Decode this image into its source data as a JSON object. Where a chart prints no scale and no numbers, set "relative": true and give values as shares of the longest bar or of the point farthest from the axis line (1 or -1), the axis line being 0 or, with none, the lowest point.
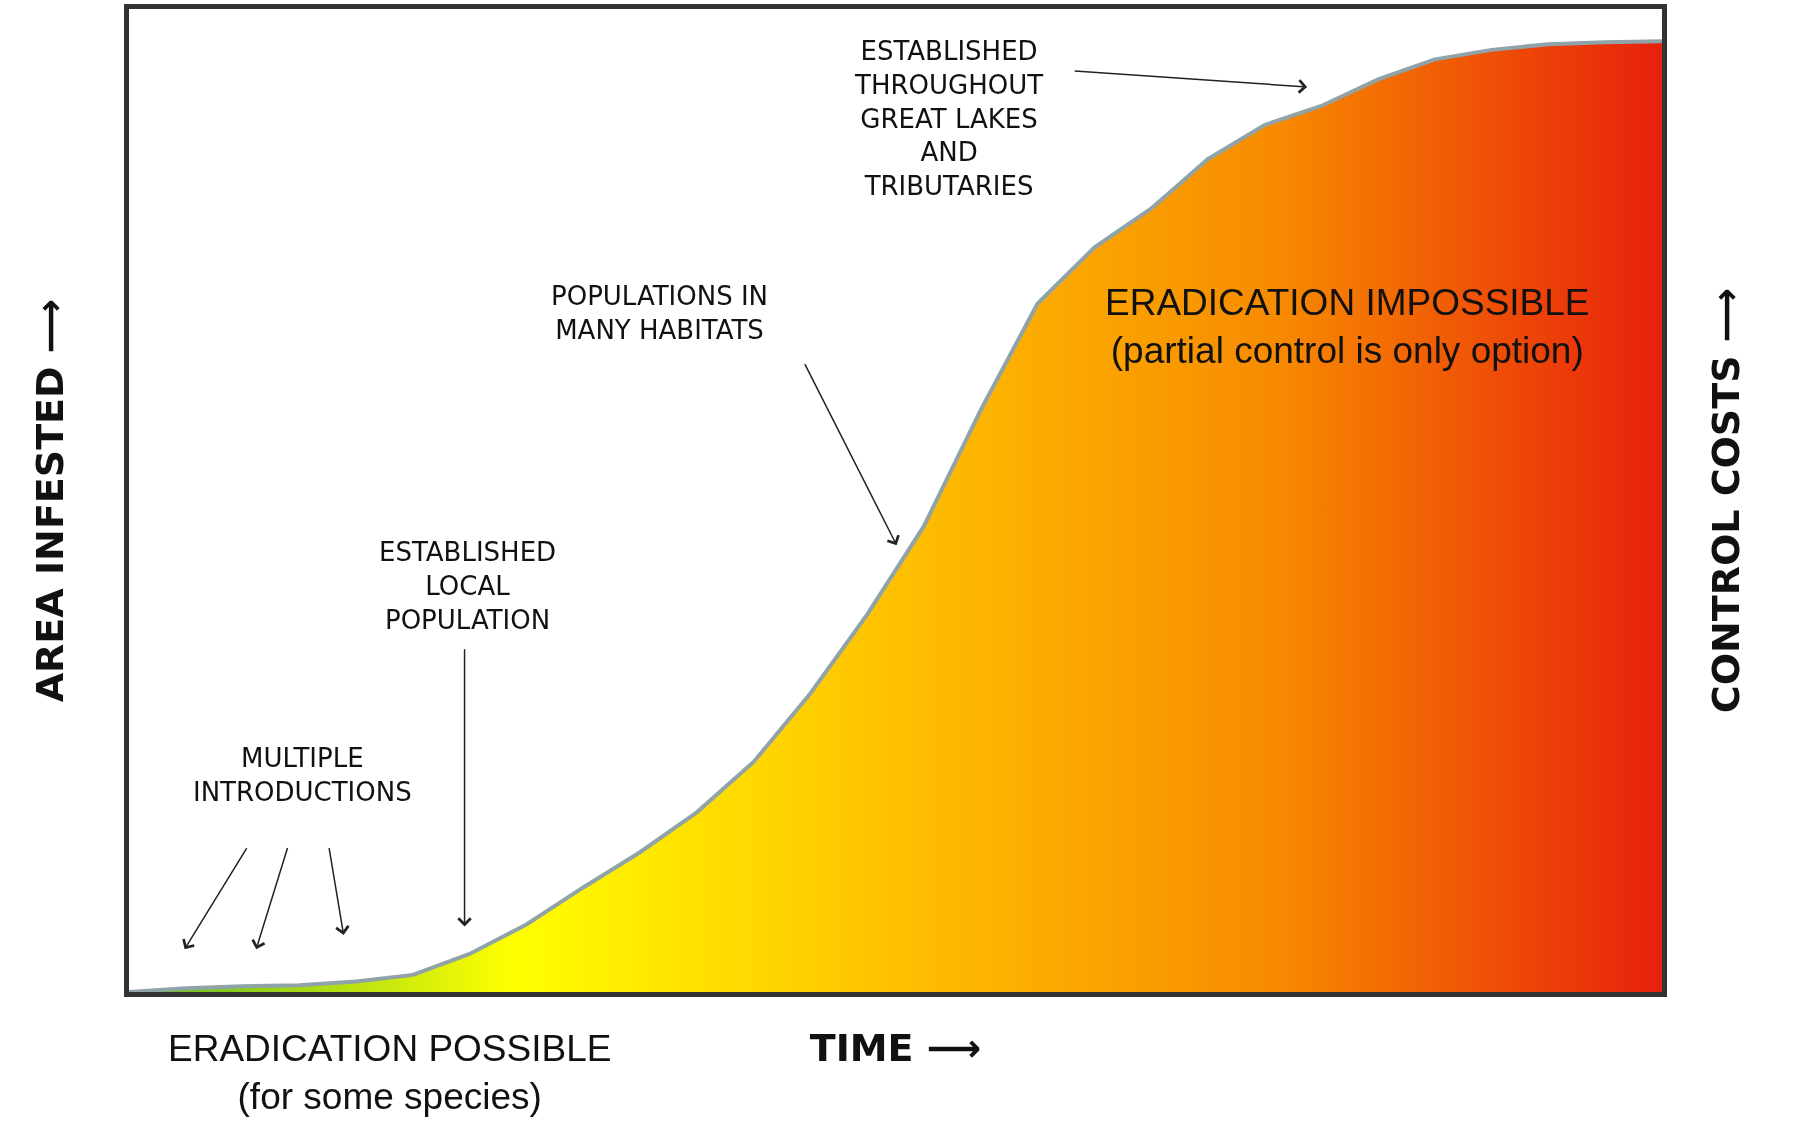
{
  "chart_data": {
    "type": "area",
    "relative": true,
    "tick_labels": false,
    "grid": false,
    "xlabel": "TIME ⟶",
    "ylabel": "AREA INFESTED ⟶",
    "y2label": "CONTROL COSTS ⟶",
    "categories": [
      null,
      null,
      null,
      null,
      null,
      null,
      null,
      null,
      null,
      null,
      null,
      null,
      null,
      null,
      null,
      null,
      null,
      null,
      null,
      null,
      null,
      null,
      null,
      null,
      null,
      null,
      null,
      null
    ],
    "colors": [
      "#5cb82a",
      "#ffff00",
      "#ffc000",
      "#f78a00",
      "#e8200c"
    ],
    "series": [
      {
        "color": "#8fa3a8",
        "values": [
          0,
          0.004,
          0.006,
          0.007,
          0.011,
          0.018,
          0.04,
          0.071,
          0.11,
          0.147,
          0.189,
          0.242,
          0.314,
          0.397,
          0.49,
          0.612,
          0.724,
          0.783,
          0.824,
          0.876,
          0.912,
          0.932,
          0.96,
          0.981,
          0.991,
          0.997,
          0.999,
          1
        ]
      }
    ],
    "annotations": [
      "MULTIPLE\nINTRODUCTIONS",
      "ESTABLISHED\nLOCAL\nPOPULATION",
      "POPULATIONS IN\nMANY HABITATS",
      "ESTABLISHED\nTHROUGHOUT\nGREAT LAKES\nAND\nTRIBUTARIES",
      "ERADICATION IMPOSSIBLE\n(partial control is only option)",
      "ERADICATION POSSIBLE\n(for some species)"
    ]
  }
}
